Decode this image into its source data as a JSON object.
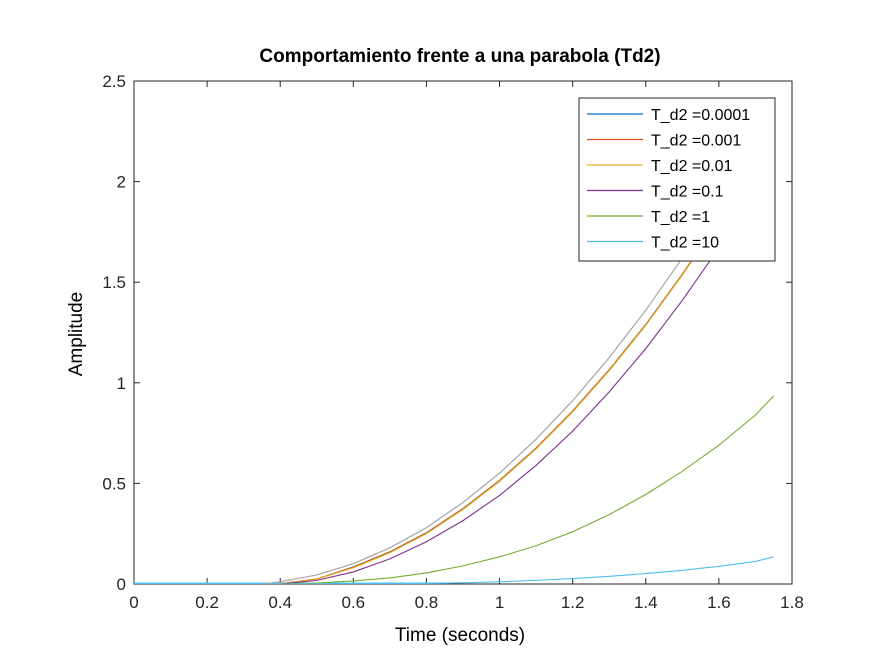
{
  "chart_data": {
    "type": "line",
    "title": "Comportamiento frente a una parabola (Td2)",
    "xlabel": "Time (seconds)",
    "ylabel": "Amplitude",
    "xlim": [
      0,
      1.8
    ],
    "ylim": [
      0,
      2.5
    ],
    "xticks": [
      "0",
      "0.2",
      "0.4",
      "0.6",
      "0.8",
      "1",
      "1.2",
      "1.4",
      "1.6",
      "1.8"
    ],
    "yticks": [
      "0",
      "0.5",
      "1",
      "1.5",
      "2",
      "2.5"
    ],
    "grid": false,
    "legend_position": "top-right",
    "reference": {
      "color": "#a6a6a6",
      "x": [
        0.35,
        0.4,
        0.5,
        0.6,
        0.7,
        0.8,
        0.9,
        1.0,
        1.1,
        1.2,
        1.3,
        1.4,
        1.5,
        1.6,
        1.7
      ],
      "y": [
        0.0,
        0.011,
        0.045,
        0.101,
        0.18,
        0.28,
        0.405,
        0.551,
        0.72,
        0.911,
        1.125,
        1.361,
        1.62,
        1.901,
        2.205
      ]
    },
    "series": [
      {
        "name": "T_d2 =0.0001",
        "color": "#0072bd",
        "x": [
          0.39,
          0.4,
          0.5,
          0.6,
          0.7,
          0.8,
          0.9,
          1.0,
          1.1,
          1.2,
          1.3,
          1.4,
          1.5,
          1.6,
          1.7
        ],
        "y": [
          0.0,
          0.001,
          0.025,
          0.085,
          0.16,
          0.255,
          0.375,
          0.515,
          0.676,
          0.86,
          1.065,
          1.29,
          1.54,
          1.81,
          2.105
        ]
      },
      {
        "name": "T_d2 =0.001",
        "color": "#d95319",
        "x": [
          0.39,
          0.4,
          0.5,
          0.6,
          0.7,
          0.8,
          0.9,
          1.0,
          1.1,
          1.2,
          1.3,
          1.4,
          1.5,
          1.6,
          1.7
        ],
        "y": [
          0.0,
          0.001,
          0.025,
          0.084,
          0.159,
          0.254,
          0.374,
          0.514,
          0.675,
          0.859,
          1.064,
          1.289,
          1.539,
          1.809,
          2.104
        ]
      },
      {
        "name": "T_d2 =0.01",
        "color": "#edb120",
        "x": [
          0.39,
          0.4,
          0.5,
          0.6,
          0.7,
          0.8,
          0.9,
          1.0,
          1.1,
          1.2,
          1.3,
          1.4,
          1.5,
          1.6,
          1.7
        ],
        "y": [
          0.0,
          0.001,
          0.024,
          0.08,
          0.155,
          0.25,
          0.37,
          0.51,
          0.671,
          0.855,
          1.06,
          1.285,
          1.535,
          1.805,
          2.1
        ]
      },
      {
        "name": "T_d2 =0.1",
        "color": "#7e2f8e",
        "x": [
          0.4,
          0.5,
          0.6,
          0.7,
          0.8,
          0.9,
          1.0,
          1.1,
          1.2,
          1.3,
          1.4,
          1.5,
          1.6,
          1.7
        ],
        "y": [
          0.0,
          0.018,
          0.06,
          0.125,
          0.21,
          0.315,
          0.44,
          0.59,
          0.76,
          0.955,
          1.17,
          1.41,
          1.67,
          1.955
        ]
      },
      {
        "name": "T_d2 =1",
        "color": "#77ac30",
        "x": [
          0.4,
          0.5,
          0.6,
          0.7,
          0.8,
          0.9,
          1.0,
          1.1,
          1.2,
          1.3,
          1.4,
          1.5,
          1.6,
          1.7,
          1.75
        ],
        "y": [
          0.0,
          0.005,
          0.015,
          0.03,
          0.055,
          0.09,
          0.135,
          0.19,
          0.26,
          0.345,
          0.445,
          0.56,
          0.69,
          0.84,
          0.935
        ]
      },
      {
        "name": "T_d2 =10",
        "color": "#4dbeee",
        "x": [
          0.4,
          0.6,
          0.8,
          0.9,
          1.0,
          1.1,
          1.2,
          1.3,
          1.4,
          1.5,
          1.6,
          1.7,
          1.75
        ],
        "y": [
          0.0,
          0.001,
          0.003,
          0.006,
          0.011,
          0.018,
          0.027,
          0.038,
          0.052,
          0.068,
          0.088,
          0.112,
          0.135
        ]
      }
    ]
  }
}
